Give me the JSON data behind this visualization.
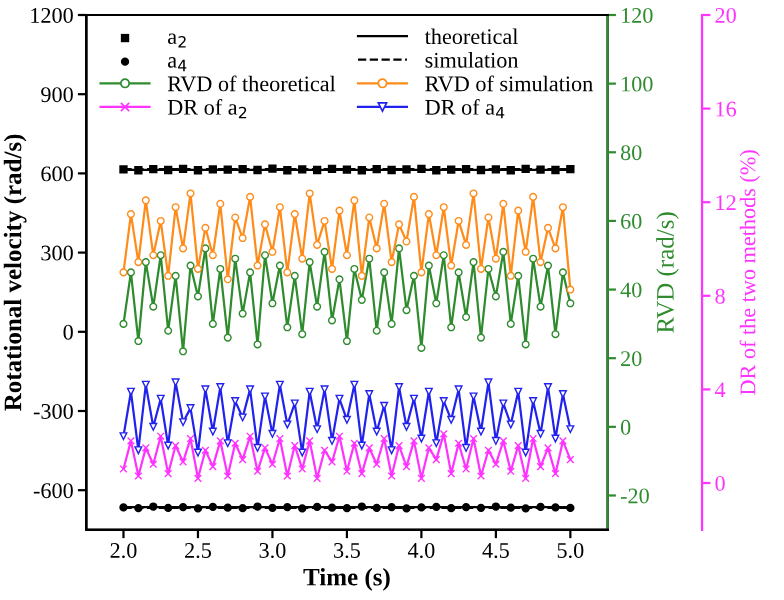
{
  "chart_data": {
    "type": "line",
    "xlabel": "Time (s)",
    "ylabel": "Rotational velocity (rad/s)",
    "y2label": "RVD (rad/s)",
    "y3label": "DR of the two methods (%)",
    "x": [
      2.0,
      2.05,
      2.1,
      2.15,
      2.2,
      2.25,
      2.3,
      2.35,
      2.4,
      2.45,
      2.5,
      2.55,
      2.6,
      2.65,
      2.7,
      2.75,
      2.8,
      2.85,
      2.9,
      2.95,
      3.0,
      3.05,
      3.1,
      3.15,
      3.2,
      3.25,
      3.3,
      3.35,
      3.4,
      3.45,
      3.5,
      3.55,
      3.6,
      3.65,
      3.7,
      3.75,
      3.8,
      3.85,
      3.9,
      3.95,
      4.0,
      4.05,
      4.1,
      4.15,
      4.2,
      4.25,
      4.3,
      4.35,
      4.4,
      4.45,
      4.5,
      4.55,
      4.6,
      4.65,
      4.7,
      4.75,
      4.8,
      4.85,
      4.9,
      4.95,
      5.0
    ],
    "xlim": [
      1.75,
      5.25
    ],
    "xticks": [
      {
        "value": 2,
        "label": "2.0"
      },
      2.5,
      {
        "value": 3,
        "label": "3.0"
      },
      3.5,
      {
        "value": 4,
        "label": "4.0"
      },
      4.5,
      {
        "value": 5,
        "label": "5.0"
      }
    ],
    "ylim": [
      -750,
      1200
    ],
    "yticks": [
      -600,
      -300,
      0,
      300,
      600,
      900,
      1200
    ],
    "y2lim": [
      -30,
      120
    ],
    "y2ticks": [
      -20,
      0,
      20,
      40,
      60,
      80,
      100,
      120
    ],
    "y3lim": [
      -2,
      20
    ],
    "y3ticks": [
      0,
      4,
      8,
      12,
      16,
      20
    ],
    "legend": "top",
    "grid": false,
    "series": [
      {
        "name": "a$_{2}$",
        "type": "scatter",
        "marker": "square",
        "color": "#000000",
        "x": [
          2.0,
          2.1,
          2.2,
          2.3,
          2.4,
          2.5,
          2.6,
          2.7,
          2.8,
          2.9,
          3.0,
          3.1,
          3.2,
          3.3,
          3.4,
          3.5,
          3.6,
          3.7,
          3.8,
          3.9,
          4.0,
          4.1,
          4.2,
          4.3,
          4.4,
          4.5,
          4.6,
          4.7,
          4.8,
          4.9,
          5.0
        ],
        "values": [
          615,
          612,
          616,
          613,
          617,
          612,
          615,
          614,
          616,
          613,
          618,
          612,
          615,
          613,
          617,
          614,
          612,
          616,
          613,
          615,
          617,
          612,
          614,
          616,
          613,
          615,
          612,
          617,
          614,
          613,
          616
        ]
      },
      {
        "name": "a$_{4}$",
        "type": "scatter",
        "marker": "circle",
        "color": "#000000",
        "x": [
          2.0,
          2.1,
          2.2,
          2.3,
          2.4,
          2.5,
          2.6,
          2.7,
          2.8,
          2.9,
          3.0,
          3.1,
          3.2,
          3.3,
          3.4,
          3.5,
          3.6,
          3.7,
          3.8,
          3.9,
          4.0,
          4.1,
          4.2,
          4.3,
          4.4,
          4.5,
          4.6,
          4.7,
          4.8,
          4.9,
          5.0
        ],
        "values": [
          -665,
          -668,
          -662,
          -667,
          -664,
          -669,
          -663,
          -666,
          -668,
          -662,
          -667,
          -664,
          -669,
          -663,
          -666,
          -668,
          -662,
          -667,
          -664,
          -669,
          -665,
          -663,
          -668,
          -664,
          -667,
          -662,
          -666,
          -669,
          -663,
          -665,
          -667
        ]
      },
      {
        "name": "RVD of theoretical",
        "axis": "y2",
        "marker": "circle",
        "color": "#2e8b2e",
        "values": [
          30,
          45,
          25,
          48,
          35,
          50,
          28,
          44,
          22,
          47,
          38,
          52,
          30,
          46,
          26,
          49,
          33,
          45,
          24,
          50,
          36,
          47,
          29,
          44,
          27,
          48,
          35,
          51,
          31,
          43,
          25,
          46,
          37,
          49,
          28,
          45,
          30,
          52,
          34,
          44,
          23,
          47,
          36,
          50,
          29,
          45,
          32,
          48,
          26,
          46,
          38,
          51,
          30,
          44,
          24,
          49,
          35,
          47,
          27,
          45,
          36
        ]
      },
      {
        "name": "DR of a$_{2}$",
        "axis": "y3",
        "marker": "cross",
        "color": "#ff33ff",
        "values": [
          0.6,
          1.8,
          0.3,
          1.5,
          0.8,
          2.0,
          0.4,
          1.6,
          0.9,
          1.9,
          0.2,
          1.4,
          0.7,
          1.8,
          0.3,
          1.7,
          1.0,
          2.0,
          0.5,
          1.5,
          0.8,
          1.9,
          0.3,
          1.6,
          0.6,
          1.8,
          0.2,
          1.4,
          0.9,
          2.0,
          0.5,
          1.7,
          0.4,
          1.5,
          0.8,
          1.9,
          0.3,
          1.6,
          0.7,
          1.8,
          0.2,
          1.5,
          1.0,
          2.1,
          0.4,
          1.7,
          0.6,
          1.9,
          0.3,
          1.4,
          0.8,
          1.8,
          0.5,
          1.6,
          0.2,
          1.9,
          0.7,
          1.5,
          0.4,
          1.8,
          1.0
        ]
      },
      {
        "name": "theoretical",
        "type": "line",
        "line_style": "solid",
        "color": "#000000",
        "x": [
          2.0,
          5.0
        ],
        "values": [
          613,
          613
        ]
      },
      {
        "name": "simulation",
        "type": "line",
        "line_style": "dashed",
        "color": "#000000",
        "x": [
          2.0,
          5.0
        ],
        "values": [
          616,
          616
        ]
      },
      {
        "name": "RVD of simulation",
        "axis": "y2",
        "marker": "circle",
        "color": "#ff8c1a",
        "values": [
          45,
          62,
          48,
          66,
          50,
          60,
          44,
          64,
          52,
          68,
          46,
          58,
          50,
          65,
          43,
          61,
          55,
          67,
          47,
          59,
          51,
          64,
          45,
          62,
          49,
          68,
          53,
          60,
          46,
          63,
          50,
          66,
          44,
          61,
          52,
          65,
          48,
          59,
          54,
          67,
          45,
          62,
          50,
          64,
          47,
          60,
          53,
          68,
          46,
          61,
          49,
          65,
          44,
          63,
          51,
          67,
          48,
          58,
          52,
          64,
          40
        ]
      },
      {
        "name": "DR of a$_{4}$",
        "axis": "y3",
        "marker": "triangle",
        "color": "#2222ee",
        "values": [
          2.0,
          3.9,
          1.4,
          4.2,
          2.4,
          3.6,
          1.6,
          4.3,
          2.6,
          3.2,
          1.3,
          4.0,
          2.2,
          4.1,
          1.7,
          3.5,
          2.8,
          4.0,
          1.5,
          3.7,
          2.1,
          4.2,
          2.5,
          3.4,
          1.3,
          3.9,
          2.3,
          4.0,
          1.8,
          3.6,
          2.7,
          4.2,
          1.6,
          3.8,
          2.2,
          3.3,
          1.4,
          4.1,
          2.4,
          3.6,
          1.9,
          3.9,
          1.7,
          3.5,
          2.7,
          4.0,
          1.5,
          3.7,
          2.2,
          4.3,
          1.8,
          3.4,
          2.5,
          3.9,
          1.3,
          3.5,
          2.1,
          4.1,
          1.9,
          3.8,
          2.3
        ]
      },
      {
        "type": "line",
        "line_style": "solid",
        "color": "#000000",
        "x": [
          2.0,
          5.0
        ],
        "values": [
          -664,
          -664
        ]
      },
      {
        "type": "line",
        "line_style": "dashed",
        "color": "#000000",
        "x": [
          2.0,
          5.0
        ],
        "values": [
          -667,
          -667
        ]
      }
    ]
  }
}
